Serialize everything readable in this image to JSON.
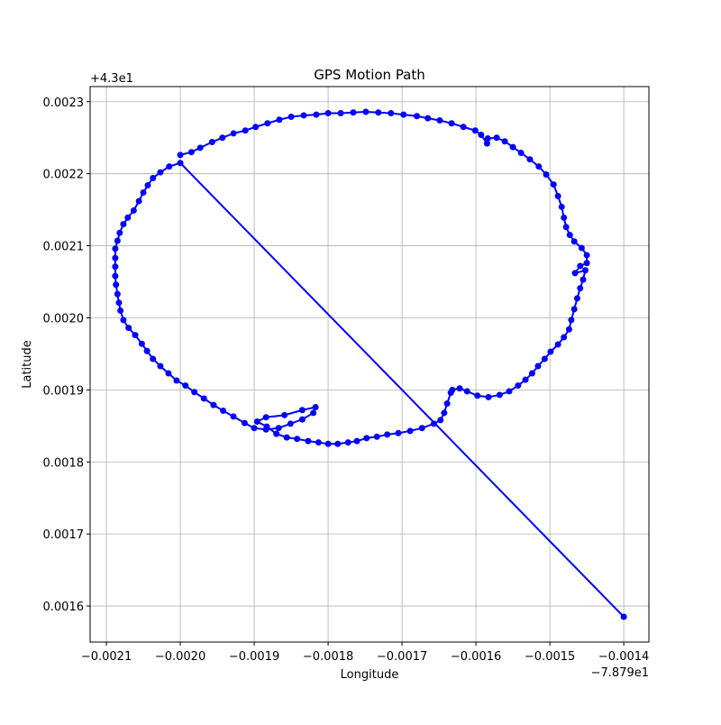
{
  "chart_data": {
    "type": "line",
    "title": "GPS Motion Path",
    "xlabel": "Longitude",
    "ylabel": "Latitude",
    "x_offset": "−7.879e1",
    "y_offset": "+4.3e1",
    "xlim": [
      -0.002122,
      -0.001366
    ],
    "ylim": [
      0.00155,
      0.002321
    ],
    "xticks": [
      {
        "value": -0.0021,
        "label": "−0.0021"
      },
      {
        "value": -0.002,
        "label": "−0.0020"
      },
      {
        "value": -0.0019,
        "label": "−0.0019"
      },
      {
        "value": -0.0018,
        "label": "−0.0018"
      },
      {
        "value": -0.0017,
        "label": "−0.0017"
      },
      {
        "value": -0.0016,
        "label": "−0.0016"
      },
      {
        "value": -0.0015,
        "label": "−0.0015"
      },
      {
        "value": -0.0014,
        "label": "−0.0014"
      }
    ],
    "yticks": [
      0.0016,
      0.0017,
      0.0018,
      {
        "value": 0.0019,
        "label": "0.0019"
      },
      {
        "value": 0.002,
        "label": "0.0020"
      },
      0.0021,
      0.0022,
      0.0023
    ],
    "grid": true,
    "series": [
      {
        "color": "#0000ff",
        "x": [
          -0.0014,
          -0.002,
          -0.002015,
          -0.002027,
          -0.002037,
          -0.002044,
          -0.00205,
          -0.002056,
          -0.002063,
          -0.002071,
          -0.002077,
          -0.002082,
          -0.002085,
          -0.002088,
          -0.002088,
          -0.002088,
          -0.002088,
          -0.002087,
          -0.002085,
          -0.002083,
          -0.002081,
          -0.002077,
          -0.00207,
          -0.002061,
          -0.002052,
          -0.002045,
          -0.002037,
          -0.002027,
          -0.002016,
          -0.002005,
          -0.001993,
          -0.001981,
          -0.001968,
          -0.001955,
          -0.001942,
          -0.001928,
          -0.001913,
          -0.0019,
          -0.001884,
          -0.001867,
          -0.001851,
          -0.001835,
          -0.00182,
          -0.001817,
          -0.001835,
          -0.001859,
          -0.001884,
          -0.001896,
          -0.001883,
          -0.00187,
          -0.001856,
          -0.001842,
          -0.001827,
          -0.001813,
          -0.0018,
          -0.001787,
          -0.001773,
          -0.001761,
          -0.001748,
          -0.001734,
          -0.00172,
          -0.001705,
          -0.001689,
          -0.001673,
          -0.001657,
          -0.001648,
          -0.001643,
          -0.001639,
          -0.001634,
          -0.001632,
          -0.001622,
          -0.001612,
          -0.001598,
          -0.001583,
          -0.001568,
          -0.001555,
          -0.001543,
          -0.001533,
          -0.001524,
          -0.001516,
          -0.001507,
          -0.001499,
          -0.001489,
          -0.001481,
          -0.001474,
          -0.001471,
          -0.001467,
          -0.001463,
          -0.001459,
          -0.001455,
          -0.001452,
          -0.001466,
          -0.001459,
          -0.00145,
          -0.00145,
          -0.001457,
          -0.001467,
          -0.001473,
          -0.001478,
          -0.001481,
          -0.001484,
          -0.001489,
          -0.001495,
          -0.001505,
          -0.001515,
          -0.001527,
          -0.001539,
          -0.00155,
          -0.001561,
          -0.001572,
          -0.001584,
          -0.001585,
          -0.001593,
          -0.001601,
          -0.001617,
          -0.001633,
          -0.001649,
          -0.001665,
          -0.00168,
          -0.001698,
          -0.001715,
          -0.001732,
          -0.001749,
          -0.001766,
          -0.001783,
          -0.0018,
          -0.001816,
          -0.001833,
          -0.00185,
          -0.001866,
          -0.001882,
          -0.001898,
          -0.001912,
          -0.001928,
          -0.001943,
          -0.001957,
          -0.001973,
          -0.001985,
          -0.002
        ],
        "values": [
          0.001585,
          0.002215,
          0.00221,
          0.002202,
          0.002194,
          0.002184,
          0.002174,
          0.002162,
          0.002149,
          0.002139,
          0.00213,
          0.002118,
          0.002107,
          0.002096,
          0.002083,
          0.002071,
          0.002058,
          0.002046,
          0.002033,
          0.002021,
          0.00201,
          0.001997,
          0.001986,
          0.001976,
          0.001964,
          0.001954,
          0.001943,
          0.001933,
          0.001923,
          0.001913,
          0.001906,
          0.001897,
          0.001888,
          0.001879,
          0.001871,
          0.001863,
          0.001854,
          0.001847,
          0.001845,
          0.001847,
          0.001853,
          0.001859,
          0.001868,
          0.001876,
          0.001872,
          0.001865,
          0.001862,
          0.001856,
          0.001849,
          0.001839,
          0.001834,
          0.001832,
          0.001829,
          0.001827,
          0.001825,
          0.001825,
          0.001827,
          0.001829,
          0.001833,
          0.001835,
          0.001838,
          0.00184,
          0.001843,
          0.001847,
          0.001853,
          0.001858,
          0.001868,
          0.001881,
          0.001896,
          0.0019,
          0.001902,
          0.001898,
          0.001892,
          0.00189,
          0.001893,
          0.001898,
          0.001906,
          0.001914,
          0.001923,
          0.001933,
          0.001943,
          0.001953,
          0.001963,
          0.001973,
          0.001984,
          0.001997,
          0.002012,
          0.002027,
          0.002041,
          0.002053,
          0.002066,
          0.002062,
          0.002072,
          0.002076,
          0.002087,
          0.002097,
          0.002106,
          0.002115,
          0.002126,
          0.002139,
          0.002154,
          0.002169,
          0.002185,
          0.002199,
          0.00221,
          0.00222,
          0.002229,
          0.002237,
          0.002245,
          0.00225,
          0.002249,
          0.002242,
          0.002254,
          0.00226,
          0.002265,
          0.00227,
          0.002274,
          0.002277,
          0.00228,
          0.002282,
          0.002284,
          0.002285,
          0.002286,
          0.002285,
          0.002284,
          0.002284,
          0.002282,
          0.002281,
          0.002279,
          0.002275,
          0.00227,
          0.002265,
          0.00226,
          0.002256,
          0.00225,
          0.002244,
          0.002236,
          0.00223,
          0.002226
        ]
      }
    ]
  }
}
